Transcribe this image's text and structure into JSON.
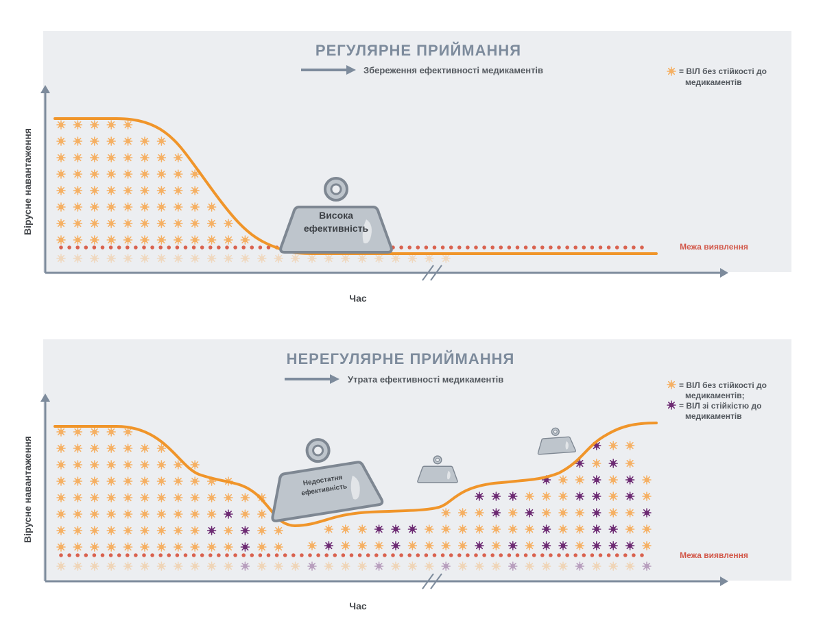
{
  "colors": {
    "panel_bg": "#eceef1",
    "axis": "#7d8b9c",
    "curve": "#f0952a",
    "virus_wild": "#f5b064",
    "virus_resistant": "#6d2b73",
    "detection_dots": "#d9624f",
    "weight_fill": "#bec5cc",
    "weight_stroke": "#7e8792"
  },
  "icons": {
    "virus": "virus-icon",
    "weight": "weight-icon",
    "arrow": "arrow-right-icon"
  },
  "panels": [
    {
      "title": "РЕГУЛЯРНЕ ПРИЙМАННЯ",
      "subtitle": "Збереження ефективності медикаментів",
      "legend": [
        {
          "kind": "wild",
          "lines": [
            "= ВІЛ без стійкості до",
            "медикаментів"
          ]
        }
      ],
      "y_label": "Вірусне навантаження",
      "x_label": "Час",
      "limit_label": "Межа виявлення",
      "weights": [
        {
          "lines": [
            "Висока",
            "ефективність"
          ]
        }
      ]
    },
    {
      "title": "НЕРЕГУЛЯРНЕ ПРИЙМАННЯ",
      "subtitle": "Утрата ефективності медикаментів",
      "legend": [
        {
          "kind": "wild",
          "lines": [
            "= ВІЛ без стійкості до",
            "медикаментів;"
          ]
        },
        {
          "kind": "resistant",
          "lines": [
            "= ВІЛ зі стійкістю до",
            "медикаментів"
          ]
        }
      ],
      "y_label": "Вірусне навантаження",
      "x_label": "Час",
      "limit_label": "Межа виявлення",
      "weights": [
        {
          "lines": [
            "Недостатня",
            "ефективність"
          ]
        },
        {
          "lines": []
        },
        {
          "lines": []
        }
      ]
    }
  ]
}
